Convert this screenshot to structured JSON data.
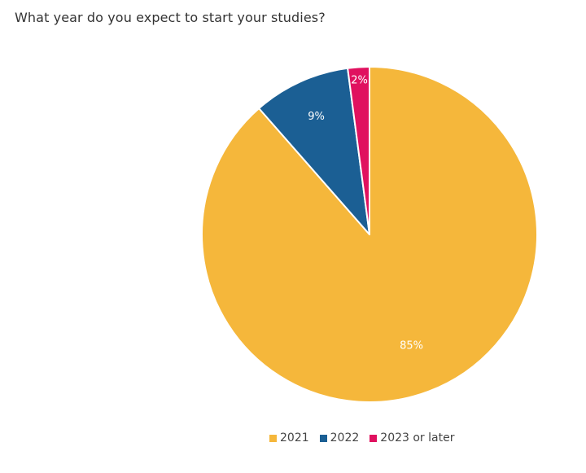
{
  "chart_data": {
    "type": "pie",
    "title": "What year do you expect to start your studies?",
    "categories": [
      "2021",
      "2022",
      "2023 or later"
    ],
    "values": [
      85,
      9,
      2
    ],
    "labels": [
      "85%",
      "9%",
      "2%"
    ],
    "colors": [
      "#F5B73B",
      "#1B5F94",
      "#E0115F"
    ],
    "legend_position": "bottom-center",
    "start_angle": "12 o'clock",
    "direction": "clockwise"
  }
}
